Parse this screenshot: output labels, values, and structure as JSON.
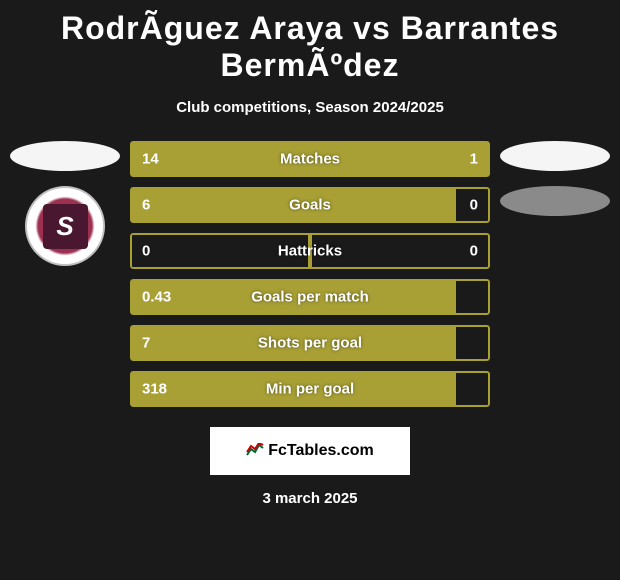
{
  "title": "RodrÃ­guez Araya vs Barrantes BermÃºdez",
  "subtitle": "Club competitions, Season 2024/2025",
  "colors": {
    "background": "#1a1a1a",
    "bar_fill": "#a8a035",
    "bar_border": "#a8a035",
    "text": "#ffffff"
  },
  "stats": [
    {
      "label": "Matches",
      "left_val": "14",
      "right_val": "1",
      "left_pct": 80,
      "right_pct": 20,
      "left_filled": true,
      "right_filled": true
    },
    {
      "label": "Goals",
      "left_val": "6",
      "right_val": "0",
      "left_pct": 90,
      "right_pct": 10,
      "left_filled": true,
      "right_filled": false
    },
    {
      "label": "Hattricks",
      "left_val": "0",
      "right_val": "0",
      "left_pct": 50,
      "right_pct": 50,
      "left_filled": false,
      "right_filled": false
    },
    {
      "label": "Goals per match",
      "left_val": "0.43",
      "right_val": "",
      "left_pct": 90,
      "right_pct": 10,
      "left_filled": true,
      "right_filled": false
    },
    {
      "label": "Shots per goal",
      "left_val": "7",
      "right_val": "",
      "left_pct": 90,
      "right_pct": 10,
      "left_filled": true,
      "right_filled": false
    },
    {
      "label": "Min per goal",
      "left_val": "318",
      "right_val": "",
      "left_pct": 90,
      "right_pct": 10,
      "left_filled": true,
      "right_filled": false
    }
  ],
  "footer": {
    "logo_text": "FcTables.com",
    "date": "3 march 2025"
  },
  "badge": {
    "letter": "S"
  }
}
